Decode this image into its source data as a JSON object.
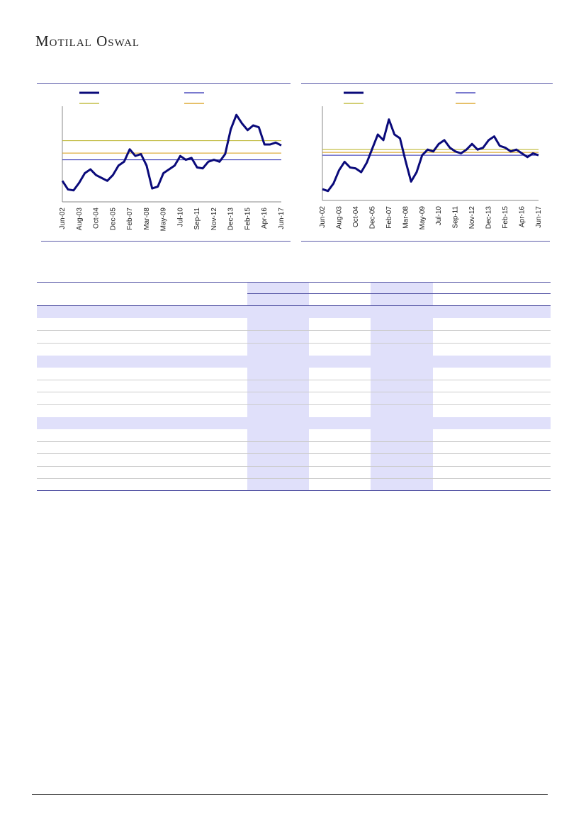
{
  "header": {
    "brand": "Motilal Oswal"
  },
  "chart_data": [
    {
      "type": "line",
      "categories": [
        "Jun-02",
        null,
        null,
        "Aug-03",
        null,
        null,
        "Oct-04",
        null,
        null,
        "Dec-05",
        null,
        null,
        "Feb-07",
        null,
        null,
        "Mar-08",
        null,
        null,
        "May-09",
        null,
        null,
        "Jul-10",
        null,
        null,
        "Sep-11",
        null,
        null,
        "Nov-12",
        null,
        null,
        "Dec-13",
        null,
        null,
        "Feb-15",
        null,
        null,
        "Apr-16",
        null,
        null,
        "Jun-17"
      ],
      "series": [
        {
          "color": "#0a0a7a",
          "values": [
            22,
            13,
            12,
            20,
            30,
            34,
            28,
            25,
            22,
            28,
            38,
            42,
            55,
            48,
            50,
            38,
            14,
            16,
            30,
            34,
            38,
            48,
            44,
            46,
            36,
            35,
            42,
            44,
            42,
            50,
            76,
            91,
            82,
            75,
            80,
            78,
            60,
            60,
            62,
            59
          ]
        }
      ],
      "reference_lines": [
        {
          "color": "#2a2ab0",
          "value": 44
        },
        {
          "color": "#b8b020",
          "value": 64
        },
        {
          "color": "#d89a10",
          "value": 51
        }
      ],
      "ylim": [
        0,
        100
      ]
    },
    {
      "type": "line",
      "categories": [
        "Jun-02",
        null,
        null,
        "Aug-03",
        null,
        null,
        "Oct-04",
        null,
        null,
        "Dec-05",
        null,
        null,
        "Feb-07",
        null,
        null,
        "Mar-08",
        null,
        null,
        "May-09",
        null,
        null,
        "Jul-10",
        null,
        null,
        "Sep-11",
        null,
        null,
        "Nov-12",
        null,
        null,
        "Dec-13",
        null,
        null,
        "Feb-15",
        null,
        null,
        "Apr-16",
        null,
        null,
        "Jun-17"
      ],
      "series": [
        {
          "color": "#0a0a7a",
          "values": [
            12,
            10,
            18,
            32,
            41,
            35,
            34,
            30,
            40,
            55,
            70,
            64,
            86,
            70,
            66,
            42,
            20,
            30,
            48,
            54,
            52,
            60,
            64,
            56,
            52,
            50,
            54,
            60,
            54,
            56,
            64,
            68,
            58,
            56,
            52,
            54,
            50,
            46,
            50,
            48
          ]
        }
      ],
      "reference_lines": [
        {
          "color": "#2a2ab0",
          "value": 48
        },
        {
          "color": "#b8b020",
          "value": 54
        },
        {
          "color": "#d89a10",
          "value": 51
        }
      ],
      "ylim": [
        0,
        100
      ]
    }
  ]
}
